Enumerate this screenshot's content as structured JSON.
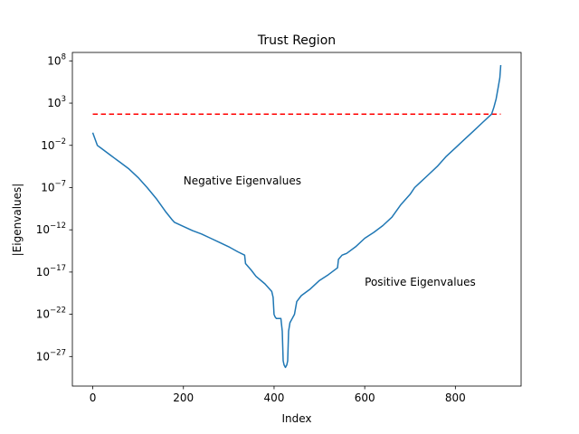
{
  "chart_data": {
    "type": "line",
    "title": "Trust Region",
    "xlabel": "Index",
    "ylabel": "|Eigenvalues|",
    "yscale": "log",
    "xlim": [
      -45,
      945
    ],
    "ylim_exp": [
      -30.5,
      9.0
    ],
    "x_ticks": [
      0,
      200,
      400,
      600,
      800
    ],
    "y_tick_exponents": [
      8,
      3,
      -2,
      -7,
      -12,
      -17,
      -22,
      -27
    ],
    "colors": {
      "series": "#1f77b4",
      "threshold": "#ff0000"
    },
    "threshold": {
      "name": "threshold",
      "style": "dashed",
      "x": [
        0,
        900
      ],
      "log10_value": 1.7
    },
    "series": [
      {
        "name": "|Eigenvalues|",
        "x": [
          0,
          10,
          20,
          40,
          60,
          80,
          100,
          120,
          140,
          160,
          175,
          180,
          200,
          220,
          240,
          260,
          280,
          300,
          320,
          335,
          337,
          350,
          360,
          380,
          395,
          398,
          400,
          402,
          405,
          410,
          415,
          418,
          420,
          422,
          425,
          428,
          430,
          432,
          435,
          440,
          445,
          450,
          460,
          480,
          500,
          520,
          540,
          542,
          550,
          560,
          580,
          600,
          620,
          640,
          660,
          680,
          700,
          710,
          720,
          740,
          760,
          780,
          800,
          820,
          840,
          860,
          880,
          885,
          890,
          895,
          898,
          900
        ],
        "log10_y": [
          -0.5,
          -2.0,
          -2.4,
          -3.2,
          -4.0,
          -4.8,
          -5.8,
          -7.0,
          -8.3,
          -9.8,
          -10.8,
          -11.1,
          -11.6,
          -12.1,
          -12.5,
          -13.0,
          -13.5,
          -14.0,
          -14.6,
          -15.0,
          -16.0,
          -16.8,
          -17.5,
          -18.4,
          -19.3,
          -20.0,
          -22.0,
          -22.3,
          -22.5,
          -22.5,
          -22.5,
          -24.0,
          -27.5,
          -28.0,
          -28.3,
          -28.0,
          -27.5,
          -24.0,
          -23.0,
          -22.5,
          -22.0,
          -20.5,
          -19.8,
          -19.0,
          -18.0,
          -17.3,
          -16.5,
          -15.5,
          -15.0,
          -14.8,
          -14.0,
          -13.0,
          -12.3,
          -11.5,
          -10.5,
          -9.0,
          -7.8,
          -7.0,
          -6.5,
          -5.5,
          -4.5,
          -3.3,
          -2.3,
          -1.3,
          -0.3,
          0.7,
          1.7,
          2.5,
          3.5,
          5.0,
          6.0,
          7.5
        ]
      }
    ],
    "annotations": [
      {
        "text": "Negative Eigenvalues",
        "x": 200,
        "log10_y": -6.2
      },
      {
        "text": "Positive Eigenvalues",
        "x": 600,
        "log10_y": -18.2
      }
    ]
  }
}
